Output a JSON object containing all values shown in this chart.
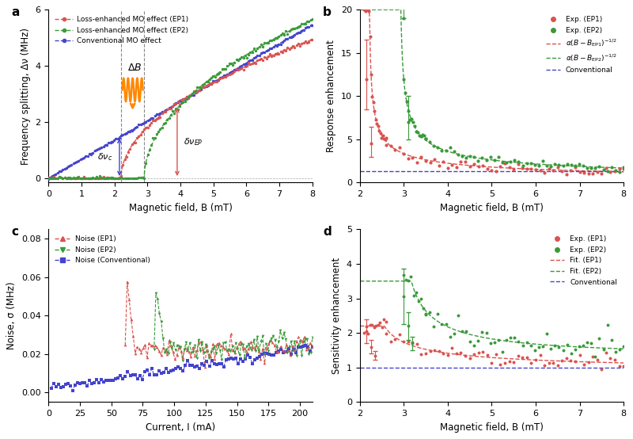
{
  "panel_a": {
    "xlabel": "Magnetic field, B (mT)",
    "ylabel": "Frequency splitting, Δν (MHz)",
    "xlim": [
      0,
      8
    ],
    "ylim": [
      -0.15,
      6
    ],
    "yticks": [
      0,
      2,
      4,
      6
    ],
    "ep1_color": "#d9534f",
    "ep2_color": "#3a9a3a",
    "conv_color": "#4444cc",
    "ep1_EP": 2.2,
    "ep2_EP": 2.9
  },
  "panel_b": {
    "xlabel": "Magnetic field, B (mT)",
    "ylabel": "Response enhancement",
    "xlim": [
      2,
      8
    ],
    "ylim": [
      0,
      20
    ],
    "yticks": [
      0,
      5,
      10,
      15,
      20
    ],
    "ep1_color": "#d9534f",
    "ep2_color": "#3a9a3a",
    "conv_color": "#4444cc",
    "ep1_EP": 2.2,
    "ep2_EP": 2.9,
    "conv_level": 1.3
  },
  "panel_c": {
    "xlabel": "Current, I (mA)",
    "ylabel": "Noise, σ (MHz)",
    "xlim": [
      0,
      210
    ],
    "ylim": [
      -0.005,
      0.085
    ],
    "yticks": [
      0.0,
      0.02,
      0.04,
      0.06,
      0.08
    ],
    "ep1_color": "#d9534f",
    "ep2_color": "#3a9a3a",
    "conv_color": "#4444cc",
    "ep1_I": 62,
    "ep2_I": 85
  },
  "panel_d": {
    "xlabel": "Magnetic field, B (mT)",
    "ylabel": "Sensitivity enhancement",
    "xlim": [
      2,
      8
    ],
    "ylim": [
      0,
      5
    ],
    "yticks": [
      0,
      1,
      2,
      3,
      4,
      5
    ],
    "ep1_color": "#d9534f",
    "ep2_color": "#3a9a3a",
    "conv_color": "#4444cc",
    "ep1_EP": 2.2,
    "ep2_EP": 2.9,
    "conv_level": 1.0
  }
}
